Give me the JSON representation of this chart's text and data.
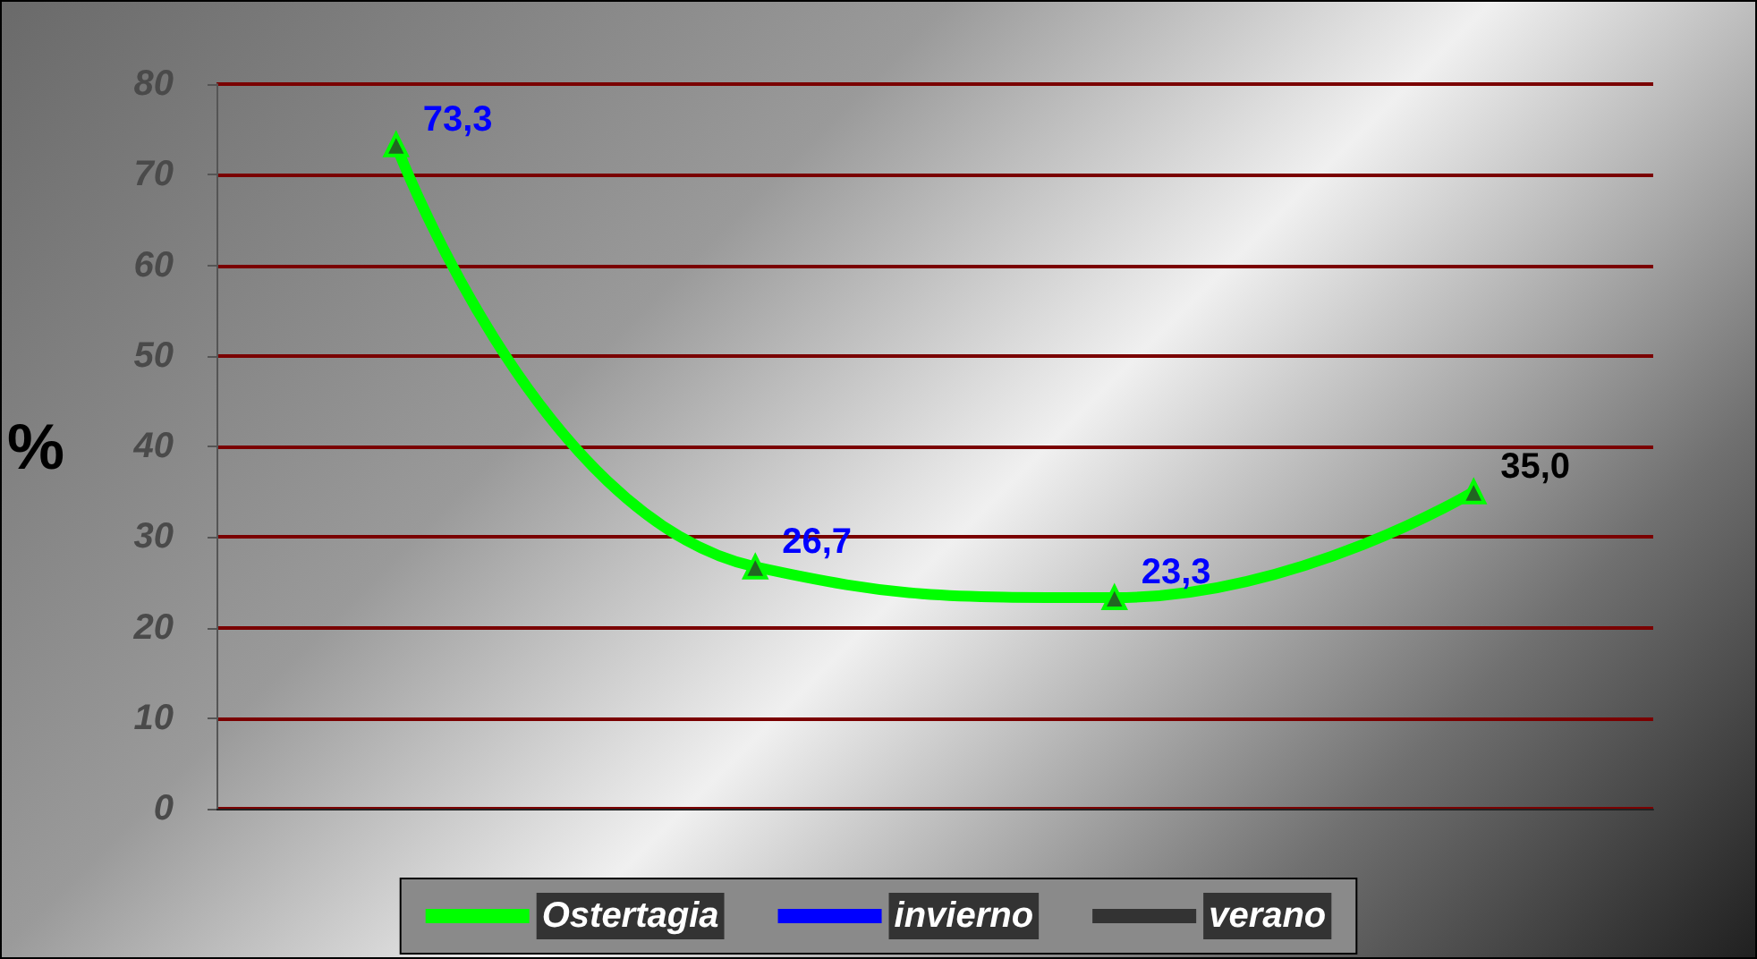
{
  "chart_data": {
    "type": "line",
    "ylabel": "%",
    "categories": [
      null,
      null,
      null,
      null
    ],
    "series": [
      {
        "name": "Ostertagia",
        "color": "#00ff00",
        "values": [
          73.3,
          26.7,
          23.3,
          35.0
        ],
        "value_labels": [
          "73,3",
          "26,7",
          "23,3",
          "35,0"
        ]
      },
      {
        "name": "invierno",
        "color": "#0000ff",
        "values": [
          null,
          null,
          null,
          null
        ]
      },
      {
        "name": "verano",
        "color": "#333333",
        "values": [
          null,
          null,
          null,
          null
        ]
      }
    ],
    "ylim": [
      0,
      80
    ],
    "yticks": [
      0,
      10,
      20,
      30,
      40,
      50,
      60,
      70,
      80
    ],
    "grid": "y",
    "legend": "bottom",
    "marker": "triangle",
    "line_style": "solid"
  }
}
